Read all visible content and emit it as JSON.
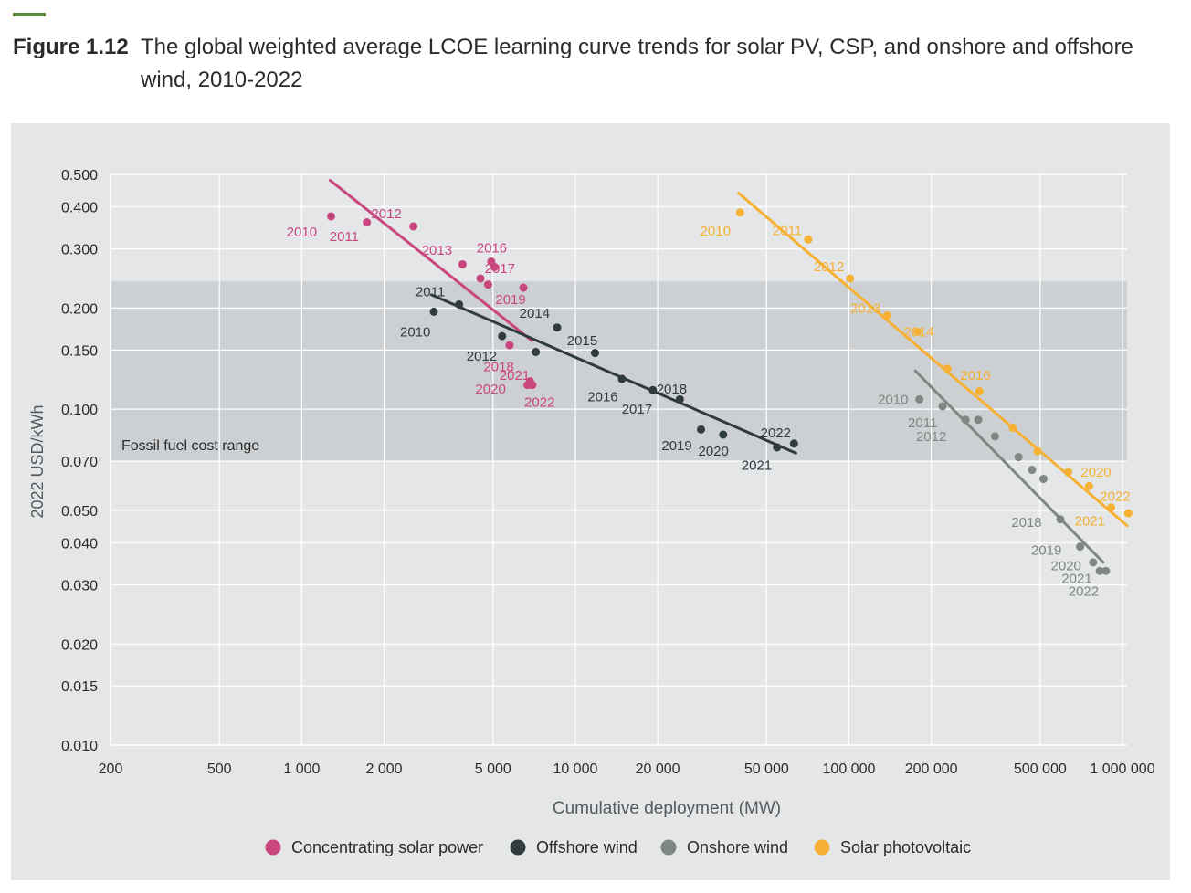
{
  "figure": {
    "label": "Figure 1.12",
    "caption": "The global weighted average LCOE learning curve trends for solar PV, CSP, and onshore and offshore wind, 2010-2022",
    "caption_line1": "The global weighted average LCOE learning curve trends for solar PV, CSP, and onshore and offshore",
    "caption_line2": "wind, 2010-2022"
  },
  "colors": {
    "csp": "#c9467f",
    "offshore": "#2f3b3e",
    "onshore": "#7f8783",
    "pv": "#f6b135",
    "panel_bg": "#e4e6e8",
    "band": "#cdd0d2",
    "grid": "#ffffff"
  },
  "chart_data": {
    "type": "scatter",
    "xscale": "log",
    "yscale": "log",
    "xlabel": "Cumulative deployment (MW)",
    "ylabel": "2022 USD/kWh",
    "xlim": [
      200,
      1050000
    ],
    "ylim": [
      0.01,
      0.5
    ],
    "xticks": [
      200,
      500,
      1000,
      2000,
      5000,
      10000,
      20000,
      50000,
      100000,
      200000,
      500000,
      1000000
    ],
    "xtick_labels": [
      "200",
      "500",
      "1 000",
      "2 000",
      "5 000",
      "10 000",
      "20 000",
      "50 000",
      "100 000",
      "200 000",
      "500 000",
      "1 000 000"
    ],
    "yticks": [
      0.01,
      0.015,
      0.02,
      0.03,
      0.04,
      0.05,
      0.07,
      0.1,
      0.15,
      0.2,
      0.3,
      0.4,
      0.5
    ],
    "ytick_labels": [
      "0.010",
      "0.015",
      "0.020",
      "0.030",
      "0.040",
      "0.050",
      "0.070",
      "0.100",
      "0.150",
      "0.200",
      "0.300",
      "0.400",
      "0.500"
    ],
    "band": {
      "label": "Fossil fuel cost range",
      "ymin": 0.07,
      "ymax": 0.24
    },
    "legend_position": "bottom",
    "series": [
      {
        "key": "csp",
        "name": "Concentrating solar power",
        "color": "#c9467f",
        "points": [
          {
            "year": "2010",
            "x": 1280,
            "y": 0.375
          },
          {
            "year": "2011",
            "x": 1730,
            "y": 0.36
          },
          {
            "year": "2012",
            "x": 2560,
            "y": 0.35
          },
          {
            "year": "2013",
            "x": 3870,
            "y": 0.27
          },
          {
            "year": "2014",
            "x": 4500,
            "y": 0.245
          },
          {
            "year": "2015",
            "x": 4800,
            "y": 0.235
          },
          {
            "year": "2016",
            "x": 4930,
            "y": 0.275
          },
          {
            "year": "2017",
            "x": 5060,
            "y": 0.265
          },
          {
            "year": "2018",
            "x": 5750,
            "y": 0.155
          },
          {
            "year": "2019",
            "x": 6460,
            "y": 0.23
          },
          {
            "year": "2020",
            "x": 6690,
            "y": 0.118
          },
          {
            "year": "2021",
            "x": 6830,
            "y": 0.121
          },
          {
            "year": "2022",
            "x": 6970,
            "y": 0.118
          }
        ],
        "trend": [
          {
            "x": 1270,
            "y": 0.48
          },
          {
            "x": 6930,
            "y": 0.16
          }
        ]
      },
      {
        "key": "offshore",
        "name": "Offshore wind",
        "color": "#2f3b3e",
        "points": [
          {
            "year": "2010",
            "x": 3040,
            "y": 0.195
          },
          {
            "year": "2011",
            "x": 3760,
            "y": 0.205
          },
          {
            "year": "2012",
            "x": 5400,
            "y": 0.165
          },
          {
            "year": "2013",
            "x": 7170,
            "y": 0.148
          },
          {
            "year": "2014",
            "x": 8580,
            "y": 0.175
          },
          {
            "year": "2015",
            "x": 11800,
            "y": 0.147
          },
          {
            "year": "2016",
            "x": 14800,
            "y": 0.123
          },
          {
            "year": "2017",
            "x": 19200,
            "y": 0.114
          },
          {
            "year": "2018",
            "x": 24100,
            "y": 0.107
          },
          {
            "year": "2019",
            "x": 28800,
            "y": 0.087
          },
          {
            "year": "2020",
            "x": 34700,
            "y": 0.084
          },
          {
            "year": "2021",
            "x": 54600,
            "y": 0.077
          },
          {
            "year": "2022",
            "x": 63000,
            "y": 0.079
          }
        ],
        "trend": [
          {
            "x": 2980,
            "y": 0.219
          },
          {
            "x": 64000,
            "y": 0.074
          }
        ]
      },
      {
        "key": "onshore",
        "name": "Onshore wind",
        "color": "#7f8783",
        "points": [
          {
            "year": "2010",
            "x": 181000,
            "y": 0.107
          },
          {
            "year": "2011",
            "x": 220000,
            "y": 0.102
          },
          {
            "year": "2012",
            "x": 267000,
            "y": 0.093
          },
          {
            "year": "2013",
            "x": 297000,
            "y": 0.093
          },
          {
            "year": "2014",
            "x": 342000,
            "y": 0.083
          },
          {
            "year": "2015",
            "x": 417000,
            "y": 0.072
          },
          {
            "year": "2016",
            "x": 467000,
            "y": 0.066
          },
          {
            "year": "2017",
            "x": 514000,
            "y": 0.062
          },
          {
            "year": "2018",
            "x": 593000,
            "y": 0.047
          },
          {
            "year": "2019",
            "x": 700000,
            "y": 0.039
          },
          {
            "year": "2020",
            "x": 781000,
            "y": 0.035
          },
          {
            "year": "2021",
            "x": 826000,
            "y": 0.033
          },
          {
            "year": "2022",
            "x": 870000,
            "y": 0.033
          }
        ],
        "trend": [
          {
            "x": 175000,
            "y": 0.13
          },
          {
            "x": 850000,
            "y": 0.035
          }
        ]
      },
      {
        "key": "pv",
        "name": "Solar photovoltaic",
        "color": "#f6b135",
        "points": [
          {
            "year": "2010",
            "x": 40000,
            "y": 0.385
          },
          {
            "year": "2011",
            "x": 71000,
            "y": 0.32
          },
          {
            "year": "2012",
            "x": 101000,
            "y": 0.245
          },
          {
            "year": "2013",
            "x": 138000,
            "y": 0.19
          },
          {
            "year": "2014",
            "x": 178000,
            "y": 0.17
          },
          {
            "year": "2015",
            "x": 229000,
            "y": 0.132
          },
          {
            "year": "2016",
            "x": 300000,
            "y": 0.113
          },
          {
            "year": "2017",
            "x": 397000,
            "y": 0.088
          },
          {
            "year": "2018",
            "x": 489000,
            "y": 0.075
          },
          {
            "year": "2019",
            "x": 633000,
            "y": 0.065
          },
          {
            "year": "2020",
            "x": 755000,
            "y": 0.059
          },
          {
            "year": "2021",
            "x": 909000,
            "y": 0.051
          },
          {
            "year": "2022",
            "x": 1050000,
            "y": 0.049
          }
        ],
        "trend": [
          {
            "x": 39500,
            "y": 0.44
          },
          {
            "x": 1040000,
            "y": 0.045
          }
        ]
      }
    ],
    "point_labels": [
      {
        "series": "csp",
        "year": "2010",
        "ax": 1000,
        "ay": 0.337
      },
      {
        "series": "csp",
        "year": "2011",
        "ax": 1430,
        "ay": 0.327
      },
      {
        "series": "csp",
        "year": "2012",
        "ax": 2040,
        "ay": 0.382
      },
      {
        "series": "csp",
        "year": "2013",
        "ax": 3120,
        "ay": 0.297
      },
      {
        "series": "csp",
        "year": "2016",
        "ax": 4950,
        "ay": 0.302
      },
      {
        "series": "csp",
        "year": "2017",
        "ax": 5300,
        "ay": 0.262
      },
      {
        "series": "csp",
        "year": "2019",
        "ax": 5800,
        "ay": 0.212
      },
      {
        "series": "csp",
        "year": "2018",
        "ax": 5250,
        "ay": 0.134
      },
      {
        "series": "csp",
        "year": "2021",
        "ax": 6000,
        "ay": 0.126
      },
      {
        "series": "csp",
        "year": "2020",
        "ax": 4900,
        "ay": 0.115
      },
      {
        "series": "csp",
        "year": "2022",
        "ax": 7400,
        "ay": 0.105
      },
      {
        "series": "offshore",
        "year": "2011",
        "ax": 2950,
        "ay": 0.224
      },
      {
        "series": "offshore",
        "year": "2010",
        "ax": 2600,
        "ay": 0.17
      },
      {
        "series": "offshore",
        "year": "2012",
        "ax": 4550,
        "ay": 0.144
      },
      {
        "series": "offshore",
        "year": "2014",
        "ax": 7100,
        "ay": 0.193
      },
      {
        "series": "offshore",
        "year": "2015",
        "ax": 10600,
        "ay": 0.16
      },
      {
        "series": "offshore",
        "year": "2016",
        "ax": 12600,
        "ay": 0.109
      },
      {
        "series": "offshore",
        "year": "2017",
        "ax": 16800,
        "ay": 0.1
      },
      {
        "series": "offshore",
        "year": "2018",
        "ax": 22500,
        "ay": 0.115
      },
      {
        "series": "offshore",
        "year": "2019",
        "ax": 23500,
        "ay": 0.078
      },
      {
        "series": "offshore",
        "year": "2020",
        "ax": 32000,
        "ay": 0.075
      },
      {
        "series": "offshore",
        "year": "2021",
        "ax": 46000,
        "ay": 0.068
      },
      {
        "series": "offshore",
        "year": "2022",
        "ax": 54000,
        "ay": 0.085
      },
      {
        "series": "onshore",
        "year": "2010",
        "ax": 145000,
        "ay": 0.107
      },
      {
        "series": "onshore",
        "year": "2011",
        "ax": 186000,
        "ay": 0.091
      },
      {
        "series": "onshore",
        "year": "2012",
        "ax": 200000,
        "ay": 0.083
      },
      {
        "series": "onshore",
        "year": "2018",
        "ax": 446000,
        "ay": 0.046
      },
      {
        "series": "onshore",
        "year": "2019",
        "ax": 527000,
        "ay": 0.038
      },
      {
        "series": "onshore",
        "year": "2020",
        "ax": 622000,
        "ay": 0.0342
      },
      {
        "series": "onshore",
        "year": "2021",
        "ax": 681000,
        "ay": 0.0313
      },
      {
        "series": "onshore",
        "year": "2022",
        "ax": 721000,
        "ay": 0.0287
      },
      {
        "series": "pv",
        "year": "2010",
        "ax": 32500,
        "ay": 0.339
      },
      {
        "series": "pv",
        "year": "2011",
        "ax": 59500,
        "ay": 0.34
      },
      {
        "series": "pv",
        "year": "2012",
        "ax": 84500,
        "ay": 0.266
      },
      {
        "series": "pv",
        "year": "2013",
        "ax": 115000,
        "ay": 0.2
      },
      {
        "series": "pv",
        "year": "2014",
        "ax": 180000,
        "ay": 0.17
      },
      {
        "series": "pv",
        "year": "2016",
        "ax": 290000,
        "ay": 0.126
      },
      {
        "series": "pv",
        "year": "2020",
        "ax": 800000,
        "ay": 0.065
      },
      {
        "series": "pv",
        "year": "2022",
        "ax": 940000,
        "ay": 0.055
      },
      {
        "series": "pv",
        "year": "2021",
        "ax": 760000,
        "ay": 0.0465
      }
    ]
  }
}
